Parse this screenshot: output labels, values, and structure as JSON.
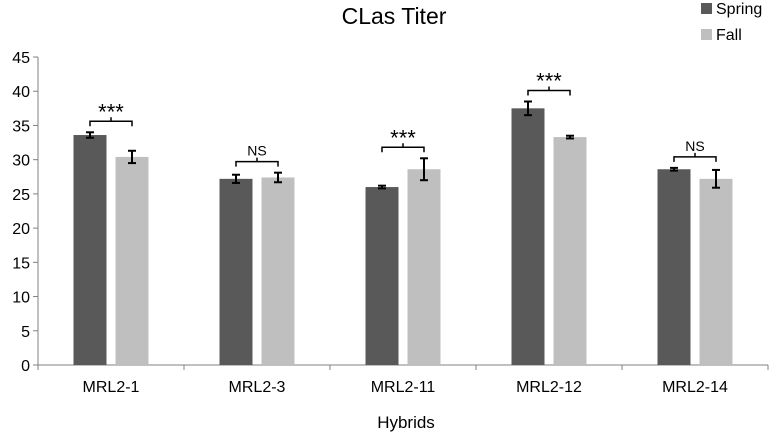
{
  "chart_data": {
    "type": "bar",
    "title": "CLas Titer",
    "xlabel": "Hybrids",
    "ylabel": "",
    "ylim": [
      0,
      45
    ],
    "yticks": [
      0,
      5,
      10,
      15,
      20,
      25,
      30,
      35,
      40,
      45
    ],
    "grid": false,
    "legend_position": "top-right",
    "categories": [
      "MRL2-1",
      "MRL2-3",
      "MRL2-11",
      "MRL2-12",
      "MRL2-14"
    ],
    "series": [
      {
        "name": "Spring",
        "color": "#595959",
        "values": [
          33.6,
          27.2,
          26.0,
          37.5,
          28.6
        ],
        "errors": [
          0.4,
          0.6,
          0.2,
          1.0,
          0.2
        ]
      },
      {
        "name": "Fall",
        "color": "#bfbfbf",
        "values": [
          30.4,
          27.4,
          28.6,
          33.3,
          27.2
        ],
        "errors": [
          0.9,
          0.7,
          1.6,
          0.2,
          1.3
        ]
      }
    ],
    "annotations": [
      "***",
      "NS",
      "***",
      "***",
      "NS"
    ]
  }
}
